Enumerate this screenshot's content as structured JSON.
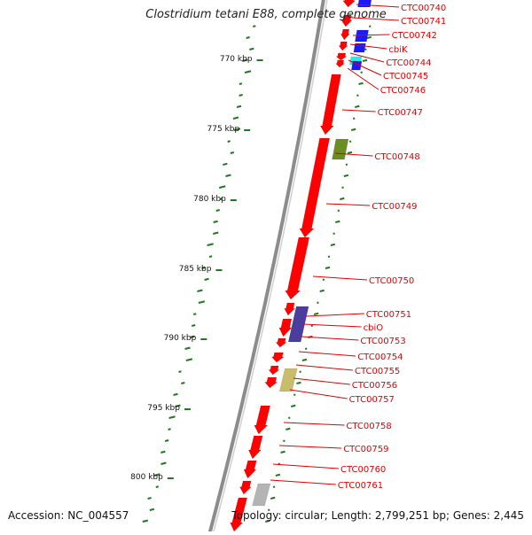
{
  "title": "Clostridium tetani E88, complete genome",
  "accession": "Accession: NC_004557",
  "topology": "Topology: circular; Length: 2,799,251 bp; Genes: 2,445",
  "ticks": [
    {
      "label": "770 kbp"
    },
    {
      "label": "775 kbp"
    },
    {
      "label": "780 kbp"
    },
    {
      "label": "785 kbp"
    },
    {
      "label": "790 kbp"
    },
    {
      "label": "795 kbp"
    },
    {
      "label": "800 kbp"
    }
  ],
  "genes": [
    "CTC00740",
    "CTC00741",
    "CTC00742",
    "cbiK",
    "CTC00744",
    "CTC00745",
    "CTC00746",
    "CTC00747",
    "CTC00748",
    "CTC00749",
    "CTC00750",
    "CTC00751",
    "cbiO",
    "CTC00753",
    "CTC00754",
    "CTC00755",
    "CTC00756",
    "CTC00757",
    "CTC00758",
    "CTC00759",
    "CTC00760",
    "CTC00761"
  ],
  "colors": {
    "backbone": "#8c8c8c",
    "gene_red": "#ff0000",
    "gene_blue": "#1a1aff",
    "gene_cyan": "#33e6e6",
    "gene_olive": "#6b8e23",
    "gene_purple": "#4b3d9e",
    "gene_khaki": "#c8bd6a",
    "gene_gray": "#b4b4b4",
    "tick_green": "#1f7a1f",
    "label_red": "#e00000"
  }
}
